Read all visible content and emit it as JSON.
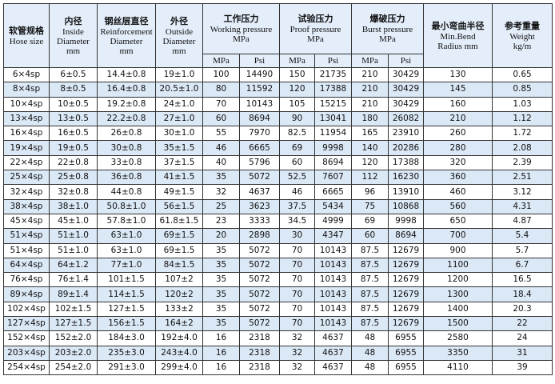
{
  "table": {
    "header": [
      {
        "zh": "软管规格",
        "en": [
          "Hose size"
        ]
      },
      {
        "zh": "内径",
        "en": [
          "Inside",
          "Diameter",
          "mm"
        ]
      },
      {
        "zh": "钢丝层直径",
        "en": [
          "Reinforcement",
          "Diameter",
          "mm"
        ]
      },
      {
        "zh": "外径",
        "en": [
          "Outside",
          "Diameter",
          "mm"
        ]
      },
      {
        "zh": "工作压力",
        "en": [
          "Working pressure",
          "MPa"
        ]
      },
      {
        "zh": "试验压力",
        "en": [
          "Proof pressure",
          "MPa"
        ]
      },
      {
        "zh": "爆破压力",
        "en": [
          "Burst pressure",
          "MPa"
        ]
      },
      {
        "zh": "最小弯曲半径",
        "en": [
          "Min.Bend",
          "Radius mm"
        ]
      },
      {
        "zh": "参考重量",
        "en": [
          "Weight",
          "kg/m"
        ]
      }
    ],
    "subheader": [
      "MPa",
      "Psi",
      "MPa",
      "Psi",
      "MPa",
      "Psi"
    ],
    "rows": [
      [
        "6×4sp",
        "6±0.5",
        "14.4±0.8",
        "19±1.0",
        "100",
        "14490",
        "150",
        "21735",
        "210",
        "30429",
        "130",
        "0.65"
      ],
      [
        "8×4sp",
        "8±0.5",
        "16.4±0.8",
        "20.5±1.0",
        "80",
        "11592",
        "120",
        "17388",
        "210",
        "30429",
        "145",
        "0.85"
      ],
      [
        "10×4sp",
        "10±0.5",
        "19.2±0.8",
        "24±1.0",
        "70",
        "10143",
        "105",
        "15215",
        "210",
        "30429",
        "160",
        "1.03"
      ],
      [
        "13×4sp",
        "13±0.5",
        "22.2±0.8",
        "27±1.0",
        "60",
        "8694",
        "90",
        "13041",
        "180",
        "26082",
        "210",
        "1.12"
      ],
      [
        "16×4sp",
        "16±0.5",
        "26±0.8",
        "30±1.0",
        "55",
        "7970",
        "82.5",
        "11954",
        "165",
        "23910",
        "260",
        "1.72"
      ],
      [
        "19×4sp",
        "19±0.5",
        "30±0.8",
        "35±1.5",
        "46",
        "6665",
        "69",
        "9998",
        "140",
        "20286",
        "280",
        "2.08"
      ],
      [
        "22×4sp",
        "22±0.8",
        "33±0.8",
        "37±1.5",
        "40",
        "5796",
        "60",
        "8694",
        "120",
        "17388",
        "320",
        "2.39"
      ],
      [
        "25×4sp",
        "25±0.8",
        "36±0.8",
        "41±1.5",
        "35",
        "5072",
        "52.5",
        "7607",
        "112",
        "16230",
        "360",
        "2.51"
      ],
      [
        "32×4sp",
        "32±0.8",
        "44±0.8",
        "49±1.5",
        "32",
        "4637",
        "46",
        "6665",
        "96",
        "13910",
        "460",
        "3.12"
      ],
      [
        "38×4sp",
        "38±1.0",
        "50.8±1.0",
        "56±1.5",
        "25",
        "3623",
        "37.5",
        "5434",
        "75",
        "10868",
        "560",
        "4.31"
      ],
      [
        "45×4sp",
        "45±1.0",
        "57.8±1.0",
        "61.8±1.5",
        "23",
        "3333",
        "34.5",
        "4999",
        "69",
        "9998",
        "650",
        "4.87"
      ],
      [
        "51×4sp",
        "51±1.0",
        "63±1.0",
        "69±1.5",
        "20",
        "2898",
        "30",
        "4347",
        "60",
        "8694",
        "700",
        "5.4"
      ],
      [
        "51×4sp",
        "51±1.0",
        "63±1.0",
        "69±1.5",
        "35",
        "5072",
        "70",
        "10143",
        "87.5",
        "12679",
        "900",
        "5.7"
      ],
      [
        "64×4sp",
        "64±1.2",
        "77±1.0",
        "84±1.5",
        "35",
        "5072",
        "70",
        "10143",
        "87.5",
        "12679",
        "1100",
        "6.7"
      ],
      [
        "76×4sp",
        "76±1.4",
        "101±1.5",
        "107±2",
        "35",
        "5072",
        "70",
        "10143",
        "87.5",
        "12679",
        "1200",
        "16.5"
      ],
      [
        "89×4sp",
        "89±1.4",
        "114±1.5",
        "120±2",
        "35",
        "5072",
        "70",
        "10143",
        "87.5",
        "12679",
        "1300",
        "18.4"
      ],
      [
        "102×4sp",
        "102±1.5",
        "127±1.5",
        "133±2",
        "35",
        "5072",
        "70",
        "10143",
        "87.5",
        "12679",
        "1400",
        "20.3"
      ],
      [
        "127×4sp",
        "127±1.5",
        "156±1.5",
        "164±2",
        "35",
        "5072",
        "70",
        "10143",
        "87.5",
        "12679",
        "1500",
        "22"
      ],
      [
        "152×4sp",
        "152±2.0",
        "184±3.0",
        "192±4.0",
        "16",
        "2318",
        "32",
        "4637",
        "48",
        "6955",
        "2580",
        "24"
      ],
      [
        "203×4sp",
        "203±2.0",
        "235±3.0",
        "243±4.0",
        "16",
        "2318",
        "32",
        "4637",
        "48",
        "6955",
        "3350",
        "31"
      ],
      [
        "254×4sp",
        "254±2.0",
        "291±3.0",
        "299±4.0",
        "16",
        "2318",
        "32",
        "4637",
        "48",
        "6955",
        "4110",
        "39"
      ]
    ]
  }
}
